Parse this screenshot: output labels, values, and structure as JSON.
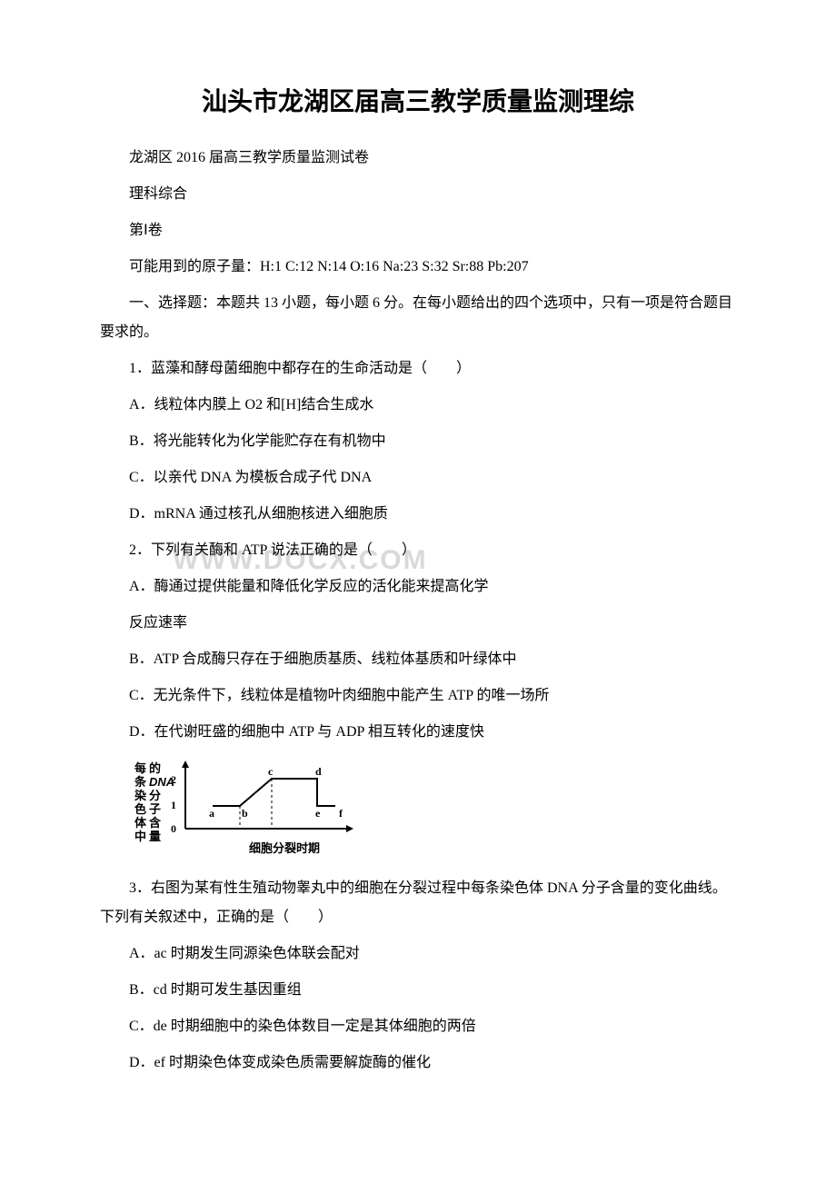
{
  "title": "汕头市龙湖区届高三教学质量监测理综",
  "subtitle": "龙湖区 2016 届高三教学质量监测试卷",
  "subject": "理科综合",
  "section": "第Ⅰ卷",
  "atomic": "可能用到的原子量：H:1 C:12 N:14 O:16 Na:23 S:32 Sr:88 Pb:207",
  "instructions": "一、选择题：本题共 13 小题，每小题 6 分。在每小题给出的四个选项中，只有一项是符合题目要求的。",
  "q1": {
    "stem": "1．蓝藻和酵母菌细胞中都存在的生命活动是（　　）",
    "a": "A．线粒体内膜上 O2 和[H]结合生成水",
    "b": "B．将光能转化为化学能贮存在有机物中",
    "c": "C．以亲代 DNA 为模板合成子代 DNA",
    "d": "D．mRNA 通过核孔从细胞核进入细胞质"
  },
  "q2": {
    "stem": "2．下列有关酶和 ATP 说法正确的是（　　）",
    "a": "A．酶通过提供能量和降低化学反应的活化能来提高化学",
    "a2": "反应速率",
    "b": "B．ATP 合成酶只存在于细胞质基质、线粒体基质和叶绿体中",
    "c": "C．无光条件下，线粒体是植物叶肉细胞中能产生 ATP 的唯一场所",
    "d": "D．在代谢旺盛的细胞中 ATP 与 ADP 相互转化的速度快"
  },
  "watermark": "WWW.DOCX.COM",
  "chart": {
    "ylabel_chars": [
      "每",
      "条",
      "染",
      "色",
      "体",
      "中"
    ],
    "ylabel2_chars": [
      "的",
      "DNA",
      "分",
      "子",
      "含",
      "量"
    ],
    "xlabel": "细胞分裂时期",
    "yticks": [
      "0",
      "1",
      "2"
    ],
    "points": [
      "a",
      "b",
      "c",
      "d",
      "e",
      "f"
    ],
    "line_color": "#000000",
    "bg": "#ffffff",
    "axis_width": 2,
    "curve": {
      "a": [
        30,
        55
      ],
      "b": [
        60,
        55
      ],
      "c": [
        95,
        25
      ],
      "d": [
        145,
        25
      ],
      "e": [
        145,
        55
      ],
      "f": [
        165,
        55
      ]
    }
  },
  "q3": {
    "stem": "3．右图为某有性生殖动物睾丸中的细胞在分裂过程中每条染色体 DNA 分子含量的变化曲线。下列有关叙述中，正确的是（　　）",
    "a": "A．ac 时期发生同源染色体联会配对",
    "b": "B．cd 时期可发生基因重组",
    "c": "C．de 时期细胞中的染色体数目一定是其体细胞的两倍",
    "d": "D．ef 时期染色体变成染色质需要解旋酶的催化"
  }
}
